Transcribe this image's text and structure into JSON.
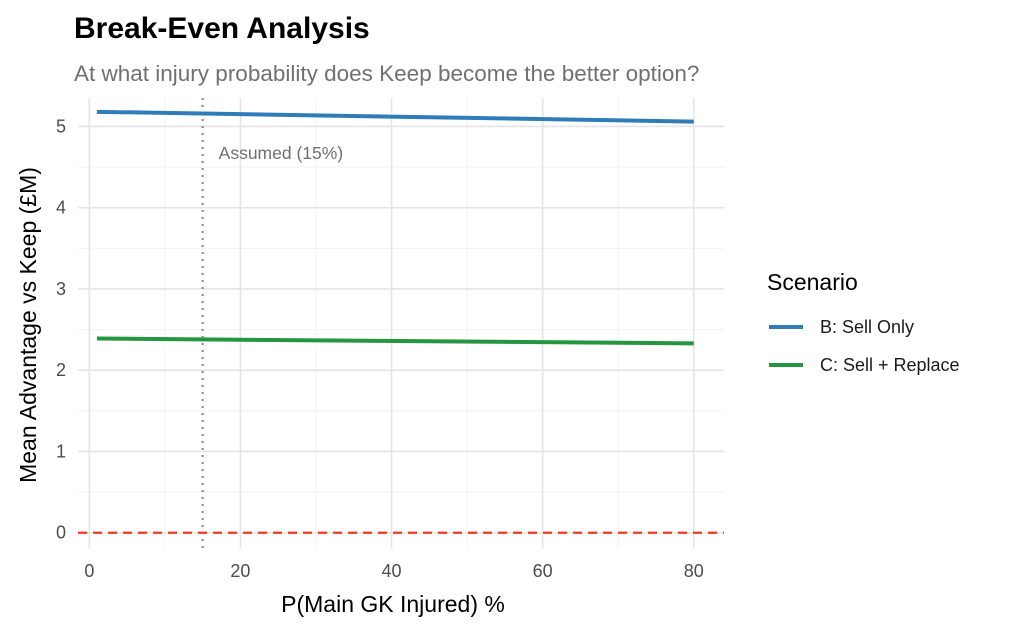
{
  "chart_data": {
    "type": "line",
    "title": "Break-Even Analysis",
    "subtitle": "At what injury probability does Keep become the better option?",
    "xlabel": "P(Main GK Injured) %",
    "ylabel": "Mean Advantage vs Keep (£M)",
    "xlim": [
      -1.5,
      84
    ],
    "ylim": [
      -0.2,
      5.35
    ],
    "x_ticks": [
      0,
      20,
      40,
      60,
      80
    ],
    "y_ticks": [
      0,
      1,
      2,
      3,
      4,
      5
    ],
    "grid": true,
    "legend": {
      "title": "Scenario",
      "position": "right"
    },
    "series": [
      {
        "name": "B: Sell Only",
        "color": "#2e7cb8",
        "x": [
          1,
          80
        ],
        "y": [
          5.18,
          5.06
        ]
      },
      {
        "name": "C: Sell + Replace",
        "color": "#23963f",
        "x": [
          1,
          80
        ],
        "y": [
          2.39,
          2.33
        ]
      }
    ],
    "reference_lines": [
      {
        "axis": "x",
        "value": 15,
        "style": "dotted",
        "color": "#8c8c8c",
        "label": "Assumed (15%)"
      },
      {
        "axis": "y",
        "value": 0,
        "style": "dashed",
        "color": "#ee3a22"
      }
    ]
  }
}
